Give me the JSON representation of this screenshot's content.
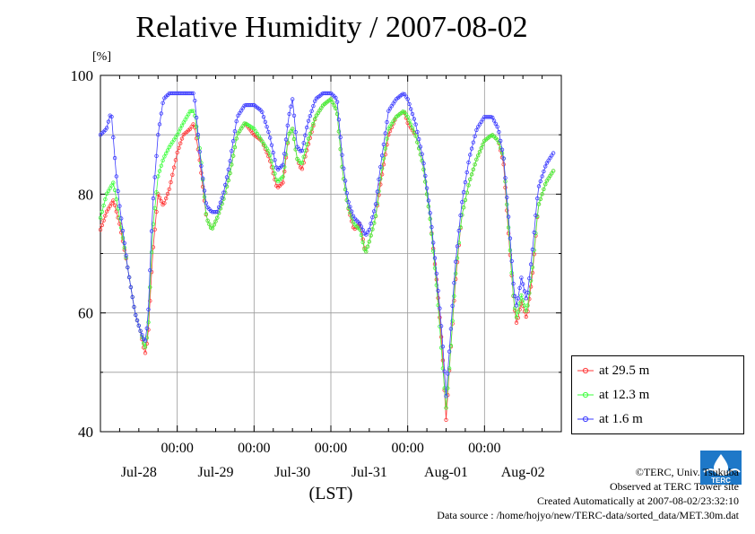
{
  "page": {
    "title": "Relative Humidity / 2007-08-02",
    "unit_label": "[%]",
    "credits": [
      "©TERC, Univ. Tsukuba",
      "Observed at TERC Tower site",
      "Created Automatically at 2007-08-02/23:32:10",
      "Data source : /home/hojyo/new/TERC-data/sorted_data/MET.30m.dat"
    ],
    "logo_text": "TERC"
  },
  "chart_data": {
    "type": "line",
    "title": "Relative Humidity / 2007-08-02",
    "ylabel": "[%]",
    "xlabel": "(LST)",
    "ylim": [
      40,
      100
    ],
    "xlim": [
      0,
      6
    ],
    "yticks": [
      40,
      60,
      80,
      100
    ],
    "ygrid": [
      50,
      70,
      90
    ],
    "time_ticks": [
      {
        "x": 1,
        "time": "00:00"
      },
      {
        "x": 2,
        "time": "00:00"
      },
      {
        "x": 3,
        "time": "00:00"
      },
      {
        "x": 4,
        "time": "00:00"
      },
      {
        "x": 5,
        "time": "00:00"
      }
    ],
    "date_labels": [
      {
        "x": 0.5,
        "label": "Jul-28"
      },
      {
        "x": 1.5,
        "label": "Jul-29"
      },
      {
        "x": 2.5,
        "label": "Jul-30"
      },
      {
        "x": 3.5,
        "label": "Jul-31"
      },
      {
        "x": 4.5,
        "label": "Aug-01"
      },
      {
        "x": 5.5,
        "label": "Aug-02"
      }
    ],
    "grid": true,
    "legend_position": "right",
    "series": [
      {
        "name": "at 29.5 m",
        "color": "#ff3b3b",
        "points": [
          [
            0,
            74
          ],
          [
            0.08,
            77
          ],
          [
            0.17,
            79
          ],
          [
            0.25,
            75
          ],
          [
            0.35,
            68
          ],
          [
            0.45,
            60
          ],
          [
            0.52,
            57
          ],
          [
            0.58,
            53
          ],
          [
            0.62,
            56
          ],
          [
            0.68,
            70
          ],
          [
            0.75,
            80
          ],
          [
            0.82,
            78
          ],
          [
            0.9,
            81
          ],
          [
            1.0,
            87
          ],
          [
            1.08,
            90
          ],
          [
            1.17,
            91
          ],
          [
            1.22,
            92
          ],
          [
            1.3,
            85
          ],
          [
            1.38,
            76
          ],
          [
            1.45,
            74
          ],
          [
            1.52,
            76
          ],
          [
            1.6,
            79
          ],
          [
            1.68,
            83
          ],
          [
            1.78,
            90
          ],
          [
            1.88,
            92
          ],
          [
            2.0,
            90
          ],
          [
            2.1,
            89
          ],
          [
            2.2,
            86
          ],
          [
            2.3,
            81
          ],
          [
            2.38,
            82
          ],
          [
            2.45,
            90
          ],
          [
            2.5,
            91
          ],
          [
            2.56,
            86
          ],
          [
            2.62,
            84
          ],
          [
            2.7,
            88
          ],
          [
            2.8,
            93
          ],
          [
            2.9,
            95
          ],
          [
            3.0,
            96
          ],
          [
            3.08,
            94
          ],
          [
            3.15,
            84
          ],
          [
            3.22,
            78
          ],
          [
            3.3,
            74
          ],
          [
            3.38,
            75
          ],
          [
            3.45,
            70
          ],
          [
            3.5,
            72
          ],
          [
            3.58,
            76
          ],
          [
            3.65,
            82
          ],
          [
            3.75,
            90
          ],
          [
            3.85,
            93
          ],
          [
            3.95,
            94
          ],
          [
            4.0,
            92
          ],
          [
            4.1,
            90
          ],
          [
            4.2,
            85
          ],
          [
            4.3,
            75
          ],
          [
            4.38,
            65
          ],
          [
            4.45,
            54
          ],
          [
            4.5,
            42
          ],
          [
            4.55,
            52
          ],
          [
            4.62,
            65
          ],
          [
            4.7,
            76
          ],
          [
            4.8,
            82
          ],
          [
            4.9,
            86
          ],
          [
            5.0,
            89
          ],
          [
            5.1,
            90
          ],
          [
            5.18,
            89
          ],
          [
            5.25,
            85
          ],
          [
            5.32,
            72
          ],
          [
            5.38,
            62
          ],
          [
            5.42,
            58
          ],
          [
            5.48,
            62
          ],
          [
            5.55,
            59
          ],
          [
            5.62,
            66
          ],
          [
            5.7,
            78
          ],
          [
            5.8,
            82
          ],
          [
            5.9,
            84
          ]
        ]
      },
      {
        "name": "at 12.3 m",
        "color": "#3dff3d",
        "points": [
          [
            0,
            76
          ],
          [
            0.08,
            80
          ],
          [
            0.17,
            82
          ],
          [
            0.25,
            76
          ],
          [
            0.35,
            68
          ],
          [
            0.45,
            60
          ],
          [
            0.52,
            57
          ],
          [
            0.58,
            54
          ],
          [
            0.62,
            57
          ],
          [
            0.68,
            74
          ],
          [
            0.75,
            83
          ],
          [
            0.82,
            86
          ],
          [
            0.9,
            88
          ],
          [
            1.0,
            90
          ],
          [
            1.08,
            92
          ],
          [
            1.17,
            94
          ],
          [
            1.22,
            94
          ],
          [
            1.3,
            87
          ],
          [
            1.38,
            76
          ],
          [
            1.45,
            74
          ],
          [
            1.52,
            76
          ],
          [
            1.6,
            79
          ],
          [
            1.68,
            83
          ],
          [
            1.78,
            90
          ],
          [
            1.88,
            92
          ],
          [
            2.0,
            91
          ],
          [
            2.1,
            89
          ],
          [
            2.2,
            87
          ],
          [
            2.3,
            82
          ],
          [
            2.38,
            83
          ],
          [
            2.45,
            90
          ],
          [
            2.5,
            91
          ],
          [
            2.56,
            86
          ],
          [
            2.62,
            85
          ],
          [
            2.7,
            89
          ],
          [
            2.8,
            93
          ],
          [
            2.9,
            95
          ],
          [
            3.0,
            96
          ],
          [
            3.08,
            94
          ],
          [
            3.15,
            84
          ],
          [
            3.22,
            78
          ],
          [
            3.3,
            75
          ],
          [
            3.38,
            74
          ],
          [
            3.45,
            70
          ],
          [
            3.5,
            72
          ],
          [
            3.58,
            76
          ],
          [
            3.65,
            83
          ],
          [
            3.75,
            91
          ],
          [
            3.85,
            93
          ],
          [
            3.95,
            94
          ],
          [
            4.0,
            93
          ],
          [
            4.1,
            90
          ],
          [
            4.2,
            85
          ],
          [
            4.3,
            75
          ],
          [
            4.38,
            64
          ],
          [
            4.45,
            52
          ],
          [
            4.5,
            44
          ],
          [
            4.55,
            52
          ],
          [
            4.62,
            66
          ],
          [
            4.7,
            76
          ],
          [
            4.8,
            82
          ],
          [
            4.9,
            86
          ],
          [
            5.0,
            89
          ],
          [
            5.1,
            90
          ],
          [
            5.18,
            89
          ],
          [
            5.25,
            86
          ],
          [
            5.32,
            73
          ],
          [
            5.38,
            62
          ],
          [
            5.42,
            59
          ],
          [
            5.48,
            63
          ],
          [
            5.55,
            60
          ],
          [
            5.62,
            67
          ],
          [
            5.7,
            78
          ],
          [
            5.8,
            82
          ],
          [
            5.9,
            84
          ]
        ]
      },
      {
        "name": "at 1.6 m",
        "color": "#3d3dff",
        "points": [
          [
            0,
            90
          ],
          [
            0.08,
            91
          ],
          [
            0.14,
            94
          ],
          [
            0.2,
            84
          ],
          [
            0.25,
            78
          ],
          [
            0.35,
            68
          ],
          [
            0.45,
            60
          ],
          [
            0.52,
            57
          ],
          [
            0.58,
            55
          ],
          [
            0.62,
            59
          ],
          [
            0.68,
            78
          ],
          [
            0.75,
            90
          ],
          [
            0.82,
            96
          ],
          [
            0.9,
            97
          ],
          [
            1.0,
            97
          ],
          [
            1.08,
            97
          ],
          [
            1.17,
            97
          ],
          [
            1.22,
            97
          ],
          [
            1.3,
            86
          ],
          [
            1.38,
            78
          ],
          [
            1.45,
            77
          ],
          [
            1.52,
            77
          ],
          [
            1.6,
            80
          ],
          [
            1.68,
            85
          ],
          [
            1.78,
            93
          ],
          [
            1.88,
            95
          ],
          [
            2.0,
            95
          ],
          [
            2.1,
            94
          ],
          [
            2.2,
            90
          ],
          [
            2.3,
            84
          ],
          [
            2.38,
            85
          ],
          [
            2.45,
            93
          ],
          [
            2.5,
            96
          ],
          [
            2.56,
            88
          ],
          [
            2.62,
            87
          ],
          [
            2.7,
            92
          ],
          [
            2.8,
            96
          ],
          [
            2.9,
            97
          ],
          [
            3.0,
            97
          ],
          [
            3.08,
            96
          ],
          [
            3.15,
            86
          ],
          [
            3.22,
            79
          ],
          [
            3.3,
            76
          ],
          [
            3.38,
            75
          ],
          [
            3.45,
            73
          ],
          [
            3.5,
            74
          ],
          [
            3.58,
            78
          ],
          [
            3.65,
            85
          ],
          [
            3.75,
            94
          ],
          [
            3.85,
            96
          ],
          [
            3.95,
            97
          ],
          [
            4.0,
            96
          ],
          [
            4.1,
            92
          ],
          [
            4.2,
            86
          ],
          [
            4.3,
            76
          ],
          [
            4.38,
            66
          ],
          [
            4.45,
            56
          ],
          [
            4.5,
            46
          ],
          [
            4.55,
            55
          ],
          [
            4.62,
            68
          ],
          [
            4.7,
            78
          ],
          [
            4.8,
            86
          ],
          [
            4.9,
            91
          ],
          [
            5.0,
            93
          ],
          [
            5.1,
            93
          ],
          [
            5.18,
            91
          ],
          [
            5.25,
            86
          ],
          [
            5.32,
            75
          ],
          [
            5.38,
            64
          ],
          [
            5.42,
            61
          ],
          [
            5.48,
            66
          ],
          [
            5.55,
            62
          ],
          [
            5.62,
            70
          ],
          [
            5.7,
            81
          ],
          [
            5.8,
            85
          ],
          [
            5.9,
            87
          ]
        ]
      }
    ]
  }
}
